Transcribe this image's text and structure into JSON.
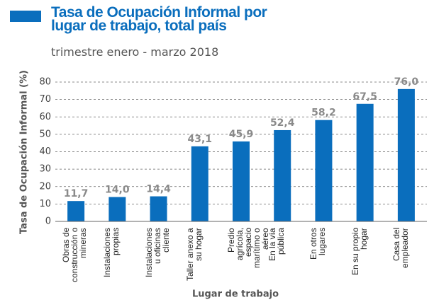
{
  "chart_data": {
    "type": "bar",
    "title": "Tasa de Ocupación Informal por lugar de trabajo, total país",
    "subtitle": "trimestre enero - marzo 2018",
    "y_label": "Tasa de Ocupación Informal (%)",
    "x_label": "Lugar de trabajo",
    "categories": [
      "Obras de construcción o mineras",
      "Instalaciones propias",
      "Instalaciones u oficinas cliente",
      "Taller anexo a su hogar",
      "Predio agrícola, espacio marítimo o aéreo",
      "En la vía pública",
      "En otros lugares",
      "En su propio hogar",
      "Casa del empleador"
    ],
    "values": [
      11.7,
      14.0,
      14.4,
      43.1,
      45.9,
      52.4,
      58.2,
      67.5,
      76.0
    ],
    "value_labels": [
      "11,7",
      "14,0",
      "14,4",
      "43,1",
      "45,9",
      "52,4",
      "58,2",
      "67,5",
      "76,0"
    ],
    "color": "#0a6ebd",
    "ylim": [
      0,
      80
    ],
    "yticks": [
      0,
      10,
      20,
      30,
      40,
      50,
      60,
      70,
      80
    ],
    "grid": true
  }
}
